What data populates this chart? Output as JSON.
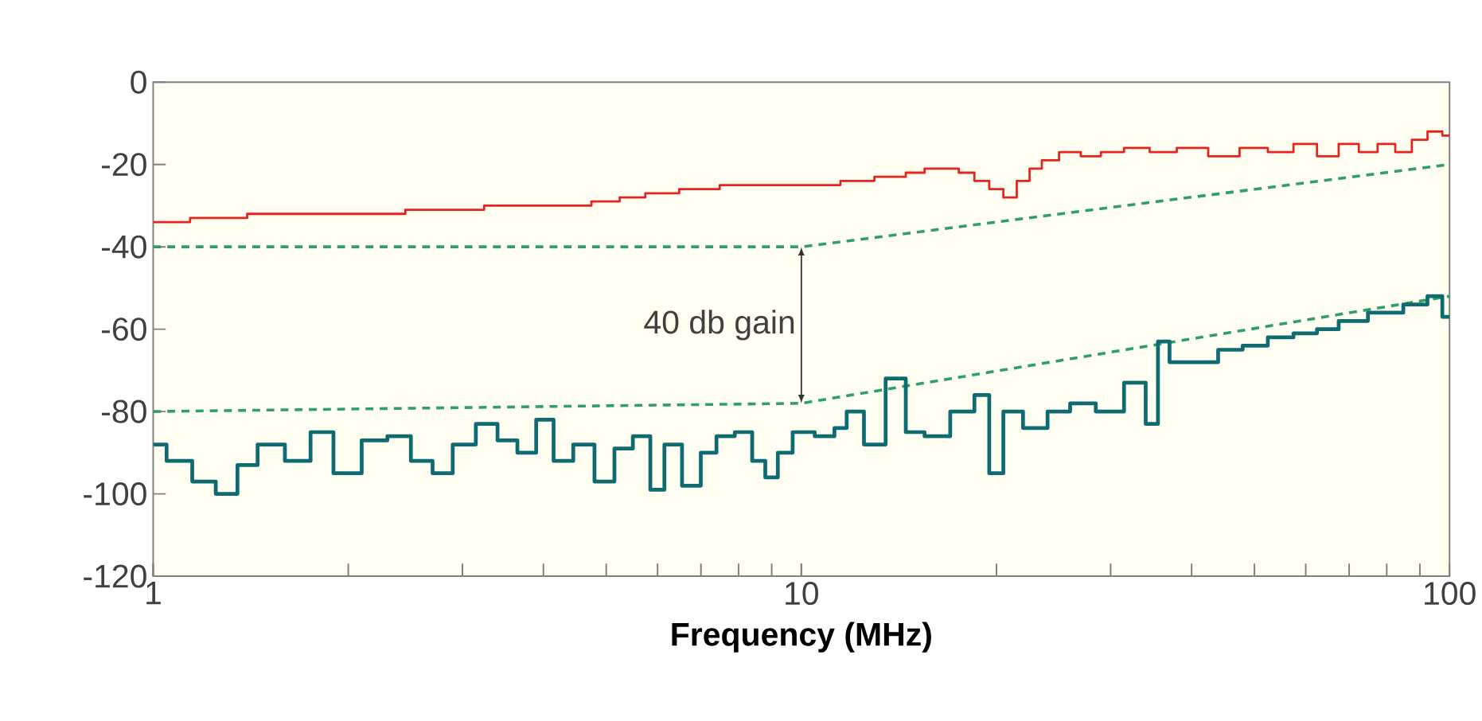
{
  "chart_data": {
    "type": "line",
    "xlabel": "Frequency (MHz)",
    "log": "x",
    "xlim": [
      1,
      100
    ],
    "ylim": [
      -120,
      0
    ],
    "xticks": [
      1,
      10,
      100
    ],
    "yticks": [
      0,
      -20,
      -40,
      -60,
      -80,
      -100,
      -120
    ],
    "grid": false,
    "annotations": [
      "40 db gain"
    ],
    "series": [
      {
        "type": "step",
        "color": "#e8231e",
        "line_style": "solid",
        "x": [
          1,
          1.3,
          1.5,
          2,
          3,
          3.5,
          4.5,
          5,
          5.5,
          6,
          7,
          8,
          9,
          10,
          11,
          12,
          14,
          15,
          16,
          17,
          18,
          19,
          20,
          21,
          22,
          23,
          24,
          26,
          28,
          30,
          33,
          36,
          40,
          45,
          50,
          55,
          60,
          65,
          70,
          75,
          80,
          85,
          90,
          95,
          100
        ],
        "values": [
          -34,
          -33,
          -32,
          -32,
          -31,
          -30,
          -30,
          -29,
          -28,
          -27,
          -26,
          -25,
          -25,
          -25,
          -25,
          -24,
          -23,
          -22,
          -21,
          -21,
          -22,
          -24,
          -26,
          -28,
          -24,
          -21,
          -19,
          -17,
          -18,
          -17,
          -16,
          -17,
          -16,
          -18,
          -16,
          -17,
          -15,
          -18,
          -15,
          -17,
          -15,
          -17,
          -14,
          -12,
          -13
        ]
      },
      {
        "color": "#2e9e6a",
        "line_style": "dashed",
        "x": [
          1,
          10,
          100
        ],
        "values": [
          -40,
          -40,
          -20
        ]
      },
      {
        "color": "#2e9e6a",
        "line_style": "dashed",
        "x": [
          1,
          10,
          100
        ],
        "values": [
          -80,
          -78,
          -52
        ]
      },
      {
        "type": "step",
        "color": "#0e6b72",
        "line_style": "solid",
        "x": [
          1,
          1.1,
          1.2,
          1.3,
          1.4,
          1.5,
          1.7,
          1.8,
          2,
          2.2,
          2.4,
          2.6,
          2.8,
          3,
          3.3,
          3.5,
          3.8,
          4,
          4.3,
          4.6,
          5,
          5.3,
          5.7,
          6,
          6.3,
          6.8,
          7.2,
          7.6,
          8.2,
          8.6,
          9,
          9.4,
          10,
          11,
          11.5,
          12,
          13,
          14,
          15,
          16,
          18,
          19,
          20,
          21,
          23,
          25,
          27,
          30,
          33,
          35,
          36,
          38,
          42,
          46,
          50,
          55,
          60,
          65,
          70,
          80,
          90,
          95,
          100
        ],
        "values": [
          -88,
          -92,
          -97,
          -100,
          -93,
          -88,
          -92,
          -85,
          -95,
          -87,
          -86,
          -92,
          -95,
          -88,
          -83,
          -87,
          -90,
          -82,
          -92,
          -88,
          -97,
          -89,
          -86,
          -99,
          -88,
          -98,
          -90,
          -86,
          -85,
          -92,
          -96,
          -90,
          -85,
          -86,
          -84,
          -80,
          -88,
          -72,
          -85,
          -86,
          -80,
          -76,
          -95,
          -80,
          -84,
          -80,
          -78,
          -80,
          -73,
          -83,
          -63,
          -68,
          -68,
          -65,
          -64,
          -62,
          -61,
          -60,
          -58,
          -56,
          -54,
          -52,
          -57
        ]
      }
    ]
  }
}
